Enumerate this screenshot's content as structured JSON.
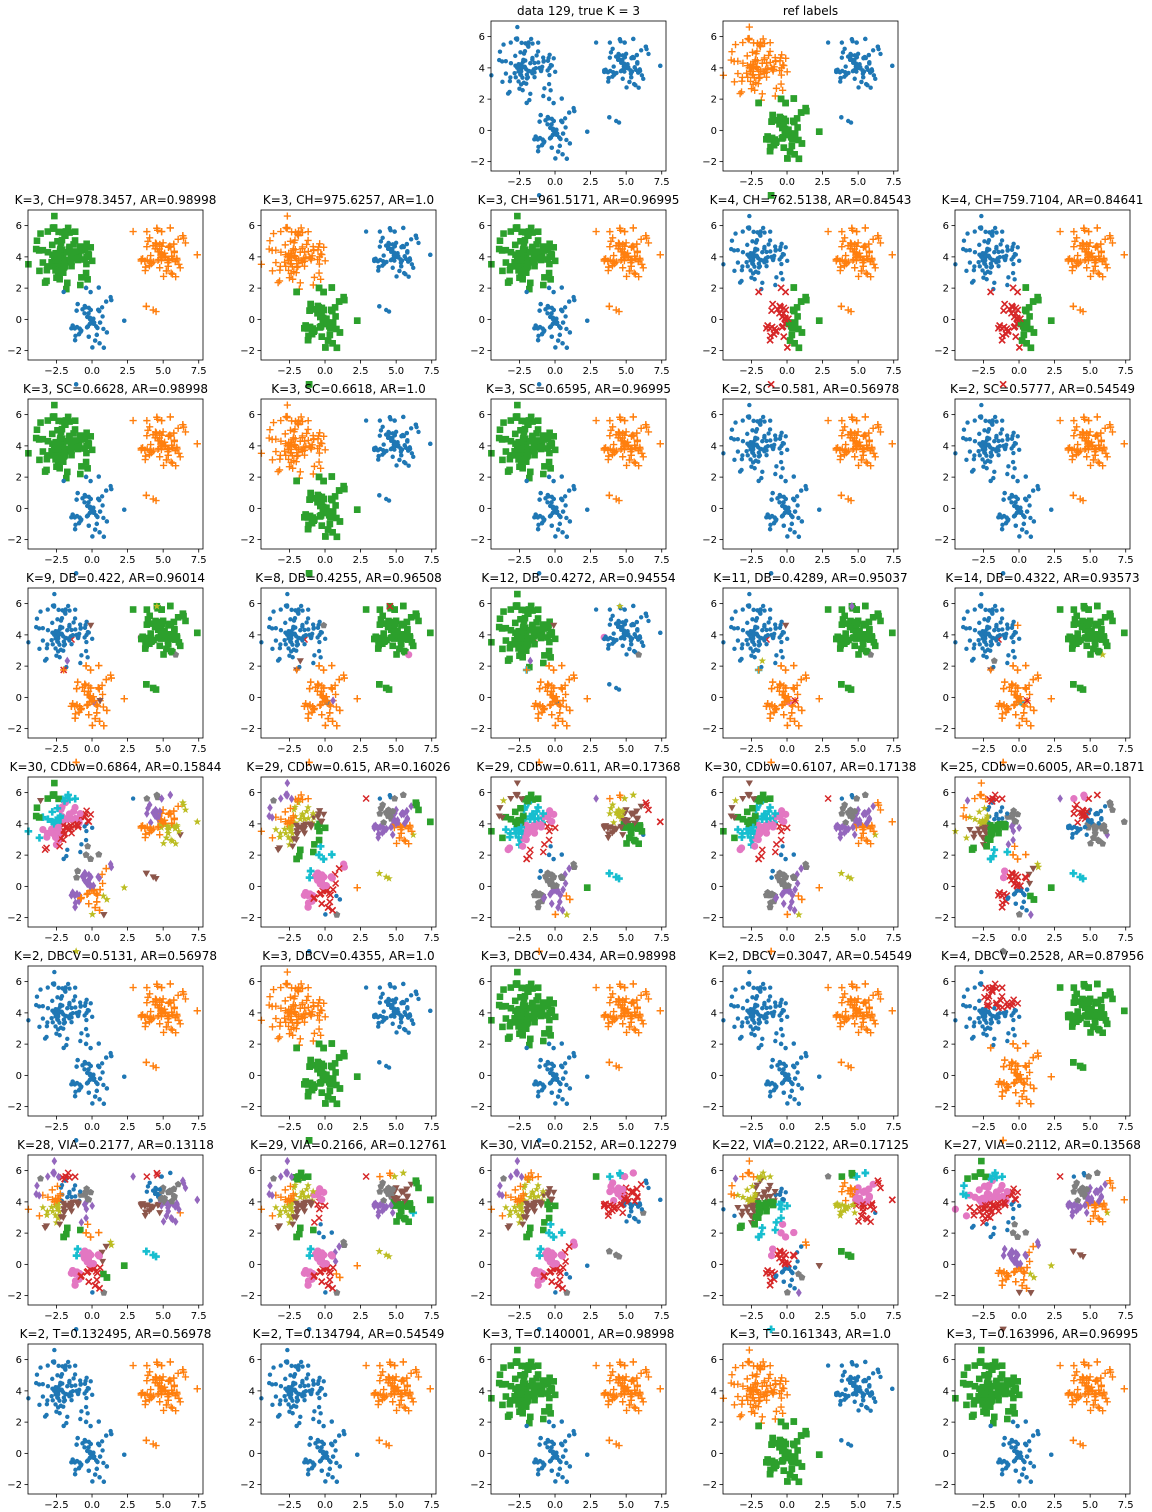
{
  "chart_data": {
    "type": "scatter",
    "xlim": [
      -4.5,
      7.8
    ],
    "ylim": [
      -2.6,
      7.0
    ],
    "xticks": [
      -2.5,
      0.0,
      2.5,
      5.0,
      7.5
    ],
    "xtick_labels": [
      "−2.5",
      "0.0",
      "2.5",
      "5.0",
      "7.5"
    ],
    "yticks": [
      -2,
      0,
      2,
      4,
      6
    ],
    "ytick_labels": [
      "−2",
      "0",
      "2",
      "4",
      "6"
    ],
    "grid": false,
    "clusters": [
      {
        "id": "A",
        "center": [
          -2.0,
          4.0
        ],
        "spread": [
          0.95,
          0.95
        ],
        "n": 100
      },
      {
        "id": "B",
        "center": [
          5.0,
          4.2
        ],
        "spread": [
          0.9,
          0.85
        ],
        "n": 100
      },
      {
        "id": "C",
        "center": [
          0.0,
          0.0
        ],
        "spread": [
          0.85,
          1.05
        ],
        "n": 100
      }
    ],
    "palette": [
      "#1f77b4",
      "#ff7f0e",
      "#2ca02c",
      "#d62728",
      "#9467bd",
      "#8c564b",
      "#e377c2",
      "#7f7f7f",
      "#bcbd22",
      "#17becf"
    ],
    "panels": [
      {
        "row": 0,
        "col": 2,
        "title": "data 129, true K = 3",
        "mode": "raw"
      },
      {
        "row": 0,
        "col": 3,
        "title": "ref labels",
        "mode": "ref"
      },
      {
        "row": 1,
        "col": 0,
        "title": "K=3, CH=978.3457, AR=0.98998",
        "mode": "map",
        "map": [
          2,
          1,
          0
        ]
      },
      {
        "row": 1,
        "col": 1,
        "title": "K=3, CH=975.6257, AR=1.0",
        "mode": "map",
        "map": [
          1,
          0,
          2
        ]
      },
      {
        "row": 1,
        "col": 2,
        "title": "K=3, CH=961.5171, AR=0.96995",
        "mode": "map",
        "map": [
          2,
          1,
          0
        ]
      },
      {
        "row": 1,
        "col": 3,
        "title": "K=4, CH=762.5138, AR=0.84543",
        "mode": "splitC",
        "map": [
          0,
          1,
          2
        ],
        "extra": 3
      },
      {
        "row": 1,
        "col": 4,
        "title": "K=4, CH=759.7104, AR=0.84641",
        "mode": "splitC",
        "map": [
          0,
          1,
          2
        ],
        "extra": 3
      },
      {
        "row": 2,
        "col": 0,
        "title": "K=3, SC=0.6628, AR=0.98998",
        "mode": "map",
        "map": [
          2,
          1,
          0
        ]
      },
      {
        "row": 2,
        "col": 1,
        "title": "K=3, SC=0.6618, AR=1.0",
        "mode": "map",
        "map": [
          1,
          0,
          2
        ]
      },
      {
        "row": 2,
        "col": 2,
        "title": "K=3, SC=0.6595, AR=0.96995",
        "mode": "map",
        "map": [
          2,
          1,
          0
        ]
      },
      {
        "row": 2,
        "col": 3,
        "title": "K=2, SC=0.581, AR=0.56978",
        "mode": "map",
        "map": [
          0,
          1,
          0
        ]
      },
      {
        "row": 2,
        "col": 4,
        "title": "K=2, SC=0.5777, AR=0.54549",
        "mode": "map",
        "map": [
          0,
          1,
          0
        ]
      },
      {
        "row": 3,
        "col": 0,
        "title": "K=9, DB=0.422, AR=0.96014",
        "mode": "outliers",
        "map": [
          0,
          2,
          1
        ],
        "k": 9
      },
      {
        "row": 3,
        "col": 1,
        "title": "K=8, DB=0.4255, AR=0.96508",
        "mode": "outliers",
        "map": [
          0,
          2,
          1
        ],
        "k": 8
      },
      {
        "row": 3,
        "col": 2,
        "title": "K=12, DB=0.4272, AR=0.94554",
        "mode": "outliers",
        "map": [
          2,
          0,
          1
        ],
        "k": 12
      },
      {
        "row": 3,
        "col": 3,
        "title": "K=11, DB=0.4289, AR=0.95037",
        "mode": "outliers",
        "map": [
          0,
          2,
          1
        ],
        "k": 11
      },
      {
        "row": 3,
        "col": 4,
        "title": "K=14, DB=0.4322, AR=0.93573",
        "mode": "outliers",
        "map": [
          0,
          2,
          1
        ],
        "k": 14
      },
      {
        "row": 4,
        "col": 0,
        "title": "K=30, CDbw=0.6864, AR=0.15844",
        "mode": "many",
        "k": 30
      },
      {
        "row": 4,
        "col": 1,
        "title": "K=29, CDbw=0.615, AR=0.16026",
        "mode": "many",
        "k": 29
      },
      {
        "row": 4,
        "col": 2,
        "title": "K=29, CDbw=0.611, AR=0.17368",
        "mode": "many",
        "k": 29
      },
      {
        "row": 4,
        "col": 3,
        "title": "K=30, CDbw=0.6107, AR=0.17138",
        "mode": "many",
        "k": 30
      },
      {
        "row": 4,
        "col": 4,
        "title": "K=25, CDbw=0.6005, AR=0.1871",
        "mode": "many",
        "k": 25
      },
      {
        "row": 5,
        "col": 0,
        "title": "K=2, DBCV=0.5131, AR=0.56978",
        "mode": "map",
        "map": [
          0,
          1,
          0
        ]
      },
      {
        "row": 5,
        "col": 1,
        "title": "K=3, DBCV=0.4355, AR=1.0",
        "mode": "map",
        "map": [
          1,
          0,
          2
        ]
      },
      {
        "row": 5,
        "col": 2,
        "title": "K=3, DBCV=0.434, AR=0.98998",
        "mode": "map",
        "map": [
          2,
          1,
          0
        ]
      },
      {
        "row": 5,
        "col": 3,
        "title": "K=2, DBCV=0.3047, AR=0.54549",
        "mode": "map",
        "map": [
          0,
          1,
          0
        ]
      },
      {
        "row": 5,
        "col": 4,
        "title": "K=4, DBCV=0.2528, AR=0.87956",
        "mode": "splitA",
        "map": [
          0,
          2,
          1
        ],
        "extra": 3
      },
      {
        "row": 6,
        "col": 0,
        "title": "K=28, VIA=0.2177, AR=0.13118",
        "mode": "many",
        "k": 28
      },
      {
        "row": 6,
        "col": 1,
        "title": "K=29, VIA=0.2166, AR=0.12761",
        "mode": "many",
        "k": 29
      },
      {
        "row": 6,
        "col": 2,
        "title": "K=30, VIA=0.2152, AR=0.12279",
        "mode": "many",
        "k": 30
      },
      {
        "row": 6,
        "col": 3,
        "title": "K=22, VIA=0.2122, AR=0.17125",
        "mode": "many",
        "k": 22
      },
      {
        "row": 6,
        "col": 4,
        "title": "K=27, VIA=0.2112, AR=0.13568",
        "mode": "many",
        "k": 27
      },
      {
        "row": 7,
        "col": 0,
        "title": "K=2, T=0.132495, AR=0.56978",
        "mode": "map",
        "map": [
          0,
          1,
          0
        ]
      },
      {
        "row": 7,
        "col": 1,
        "title": "K=2, T=0.134794, AR=0.54549",
        "mode": "map",
        "map": [
          0,
          1,
          0
        ]
      },
      {
        "row": 7,
        "col": 2,
        "title": "K=3, T=0.140001, AR=0.98998",
        "mode": "map",
        "map": [
          2,
          1,
          0
        ]
      },
      {
        "row": 7,
        "col": 3,
        "title": "K=3, T=0.161343, AR=1.0",
        "mode": "map",
        "map": [
          1,
          0,
          2
        ]
      },
      {
        "row": 7,
        "col": 4,
        "title": "K=3, T=0.163996, AR=0.96995",
        "mode": "map",
        "map": [
          2,
          1,
          0
        ]
      }
    ]
  }
}
